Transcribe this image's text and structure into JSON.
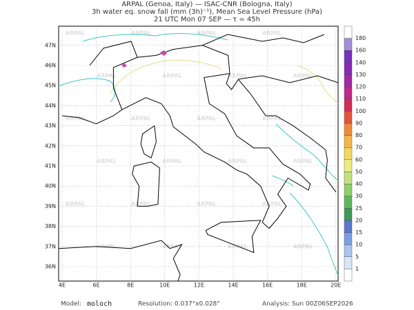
{
  "header": {
    "line1": "ARPAL (Genoa, Italy)  —  ISAC-CNR (Bologna, Italy)",
    "line2": "3h water eq. snow fall (mm (3h)⁻¹), Mean Sea Level Pressure (hPa)",
    "line3": "21 UTC Mon 07 SEP  —  τ = 45h"
  },
  "map": {
    "lon_labels": [
      "4E",
      "6E",
      "8E",
      "10E",
      "12E",
      "14E",
      "16E",
      "18E",
      "20E"
    ],
    "lat_labels": [
      "36N",
      "37N",
      "38N",
      "39N",
      "40N",
      "41N",
      "42N",
      "43N",
      "44N",
      "45N",
      "46N",
      "47N"
    ],
    "watermark": "ARPAL"
  },
  "colorbar": {
    "labels": [
      "1",
      "5",
      "10",
      "15",
      "20",
      "25",
      "30",
      "40",
      "50",
      "60",
      "70",
      "80",
      "90",
      "100",
      "110",
      "120",
      "130",
      "140",
      "160",
      "180"
    ],
    "colors": [
      "#ffffff",
      "#d8e6f8",
      "#a9c4ef",
      "#7c9fe3",
      "#5a78d2",
      "#3f9a5a",
      "#5cb85c",
      "#8fd06a",
      "#c4e27a",
      "#ecec7c",
      "#f3d860",
      "#f5b447",
      "#f08a3a",
      "#e4553a",
      "#d42c5a",
      "#c02a8a",
      "#a22aa8",
      "#8a2ab4",
      "#7a30c0",
      "#a48ed8",
      "#ffffff"
    ]
  },
  "footer": {
    "model_label": "Model:",
    "model": "moloch",
    "resolution": "Resolution: 0.037°x0.028°",
    "analysis": "Analysis: Sun 00Z06SEP2026"
  }
}
